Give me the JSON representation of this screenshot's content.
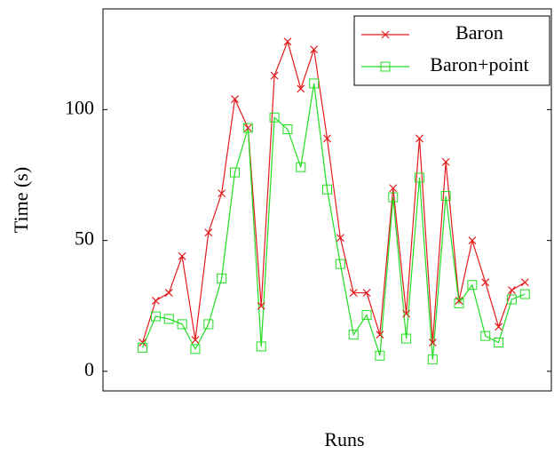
{
  "chart_data": {
    "type": "line",
    "x_label": "Runs",
    "y_label": "Time (s)",
    "x": [
      1,
      2,
      3,
      4,
      5,
      6,
      7,
      8,
      9,
      10,
      11,
      12,
      13,
      14,
      15,
      16,
      17,
      18,
      19,
      20,
      21,
      22,
      23,
      24,
      25,
      26,
      27,
      28,
      29,
      30
    ],
    "series": [
      {
        "name": "Baron",
        "color": "#e41a1c",
        "marker": "x",
        "values": [
          11,
          27,
          30,
          44,
          12,
          53,
          68,
          104,
          93,
          25,
          113,
          126,
          108,
          123,
          89,
          51,
          30,
          30,
          14,
          70,
          22,
          89,
          11,
          80,
          27,
          50,
          34,
          17,
          31,
          34
        ]
      },
      {
        "name": "Baron+point",
        "color": "#22dd22",
        "marker": "square",
        "values": [
          9,
          21,
          20,
          18,
          8.5,
          18,
          35.5,
          76,
          93,
          9.5,
          97,
          92.5,
          78,
          110,
          69.5,
          41,
          14,
          21.5,
          6,
          66.5,
          12.5,
          74,
          4.5,
          67,
          26,
          33,
          13.5,
          11,
          27.5,
          29.5
        ]
      }
    ],
    "xlim": [
      -2,
      32
    ],
    "ylim": [
      -7.5,
      138.5
    ],
    "yticks": [
      0,
      50,
      100
    ],
    "legend": "top-right"
  }
}
